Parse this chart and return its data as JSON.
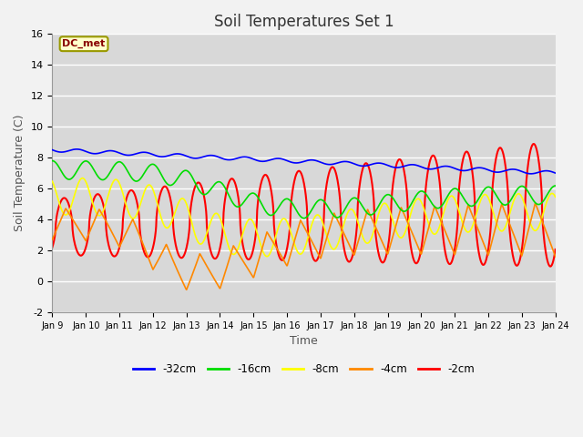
{
  "title": "Soil Temperatures Set 1",
  "xlabel": "Time",
  "ylabel": "Soil Temperature (C)",
  "ylim": [
    -2,
    16
  ],
  "yticks": [
    -2,
    0,
    2,
    4,
    6,
    8,
    10,
    12,
    14,
    16
  ],
  "xtick_labels": [
    "Jan 9",
    "Jan 10",
    "Jan 11",
    "Jan 12",
    "Jan 13",
    "Jan 14",
    "Jan 15",
    "Jan 16",
    "Jan 17",
    "Jan 18",
    "Jan 19",
    "Jan 20",
    "Jan 21",
    "Jan 22",
    "Jan 23",
    "Jan 24"
  ],
  "legend_labels": [
    "-32cm",
    "-16cm",
    "-8cm",
    "-4cm",
    "-2cm"
  ],
  "legend_colors": [
    "#0000FF",
    "#00DD00",
    "#FFFF00",
    "#FF8800",
    "#FF0000"
  ],
  "annotation_text": "DC_met",
  "annotation_box_color": "#FFFFCC",
  "annotation_box_edge": "#999900",
  "plot_bg_color": "#D8D8D8",
  "fig_bg_color": "#F2F2F2",
  "grid_color": "#FFFFFF",
  "title_fontsize": 12,
  "n_days": 15
}
